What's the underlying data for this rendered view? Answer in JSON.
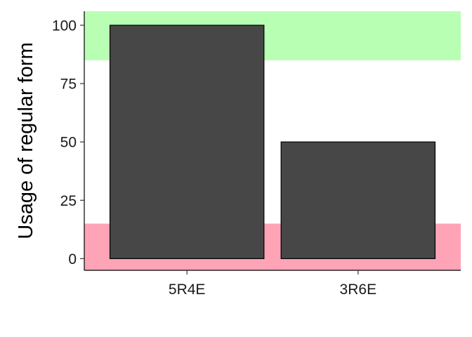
{
  "chart_data": {
    "type": "bar",
    "categories": [
      "5R4E",
      "3R6E"
    ],
    "values": [
      100,
      50
    ],
    "xlabel": "",
    "ylabel": "Usage of regular form",
    "ylim": [
      -5,
      106
    ],
    "yticks": [
      0,
      25,
      50,
      75,
      100
    ],
    "grid": false,
    "bands": [
      {
        "from": 85,
        "to": 106,
        "color": "#b8ffb4"
      },
      {
        "from": -5,
        "to": 15,
        "color": "#ffa3b7"
      }
    ],
    "colors": {
      "bar_fill": "#474747",
      "bar_stroke": "#000000"
    }
  }
}
